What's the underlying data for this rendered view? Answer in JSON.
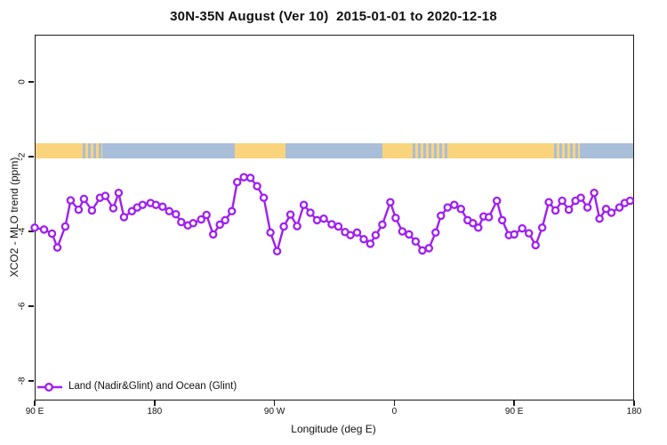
{
  "title": "30N-35N August (Ver 10)  2015-01-01 to 2020-12-18",
  "legend": {
    "label": "Land (Nadir&Glint) and Ocean (Glint)"
  },
  "colors": {
    "series_purple": "#A020F0",
    "land_tan": "#FAD47C",
    "ocean_blue": "#A9BED9",
    "axis_black": "#1a1a1a"
  },
  "chart_data": {
    "type": "line",
    "title": "30N-35N August (Ver 10)  2015-01-01 to 2020-12-18",
    "xlabel": "Longitude (deg E)",
    "ylabel": "XCO2 - MLO trend (ppm)",
    "x_tick_labels": [
      "90 E",
      "180",
      "90 W",
      "0",
      "90 E",
      "180"
    ],
    "x_tick_lons_continuous": [
      90,
      180,
      270,
      360,
      450,
      540
    ],
    "x_axis_note": "longitude continues eastward from 90E and wraps: 90E,180,90W,0,90E,180",
    "y_ticks": [
      0,
      -2,
      -4,
      -6,
      -8
    ],
    "ylim": [
      -8.6,
      1.25
    ],
    "xlim_lon_continuous": [
      90,
      540
    ],
    "grid": "off",
    "legend_position": "bottom-left-inside",
    "marker": "open-circle",
    "series": [
      {
        "name": "Land (Nadir&Glint) and Ocean (Glint)",
        "x_lon": [
          90,
          97,
          103,
          107,
          113,
          117,
          123,
          127,
          133,
          139,
          143,
          149,
          153,
          157,
          163,
          167,
          171,
          177,
          181,
          186,
          191,
          196,
          200,
          205,
          209,
          215,
          219,
          224,
          229,
          233,
          238,
          242,
          247,
          252,
          257,
          262,
          267,
          272,
          277,
          282,
          287,
          292,
          297,
          302,
          307,
          313,
          318,
          323,
          327,
          332,
          337,
          342,
          346,
          351,
          357,
          361,
          366,
          371,
          376,
          381,
          386,
          391,
          395,
          400,
          405,
          410,
          415,
          419,
          423,
          427,
          431,
          437,
          441,
          446,
          450,
          456,
          461,
          466,
          471,
          476,
          481,
          486,
          491,
          496,
          500,
          505,
          510,
          514,
          519,
          523,
          529,
          533,
          537
        ],
        "y": [
          -3.9,
          -3.95,
          -4.06,
          -4.43,
          -3.87,
          -3.17,
          -3.42,
          -3.13,
          -3.44,
          -3.1,
          -3.05,
          -3.38,
          -2.97,
          -3.62,
          -3.46,
          -3.36,
          -3.29,
          -3.24,
          -3.29,
          -3.34,
          -3.46,
          -3.54,
          -3.75,
          -3.84,
          -3.78,
          -3.68,
          -3.56,
          -4.08,
          -3.82,
          -3.7,
          -3.46,
          -2.68,
          -2.55,
          -2.57,
          -2.79,
          -3.1,
          -4.03,
          -4.53,
          -3.87,
          -3.55,
          -3.86,
          -3.29,
          -3.5,
          -3.7,
          -3.66,
          -3.81,
          -3.87,
          -4.02,
          -4.1,
          -4.03,
          -4.21,
          -4.33,
          -4.1,
          -3.82,
          -3.22,
          -3.64,
          -4.0,
          -4.08,
          -4.27,
          -4.51,
          -4.45,
          -4.03,
          -3.58,
          -3.36,
          -3.29,
          -3.4,
          -3.7,
          -3.78,
          -3.9,
          -3.6,
          -3.62,
          -3.18,
          -3.7,
          -4.1,
          -4.08,
          -3.92,
          -4.05,
          -4.37,
          -3.9,
          -3.22,
          -3.44,
          -3.18,
          -3.42,
          -3.18,
          -3.1,
          -3.36,
          -2.97,
          -3.66,
          -3.4,
          -3.5,
          -3.36,
          -3.24,
          -3.18
        ]
      }
    ],
    "map_strip": {
      "description": "world land/ocean band for 30N-35N drawn at approx -1.6 to -2.0 ppm",
      "value_top": -1.62,
      "value_bottom": -2.02,
      "segments": [
        {
          "from_lon": 90,
          "to_lon": 124,
          "type": "land"
        },
        {
          "from_lon": 124,
          "to_lon": 141,
          "type": "mixed"
        },
        {
          "from_lon": 141,
          "to_lon": 240,
          "type": "ocean"
        },
        {
          "from_lon": 240,
          "to_lon": 278,
          "type": "land"
        },
        {
          "from_lon": 278,
          "to_lon": 351,
          "type": "ocean"
        },
        {
          "from_lon": 351,
          "to_lon": 372,
          "type": "land"
        },
        {
          "from_lon": 372,
          "to_lon": 400,
          "type": "mixed"
        },
        {
          "from_lon": 400,
          "to_lon": 478,
          "type": "land"
        },
        {
          "from_lon": 478,
          "to_lon": 499,
          "type": "mixed"
        },
        {
          "from_lon": 499,
          "to_lon": 540,
          "type": "ocean"
        }
      ]
    }
  }
}
